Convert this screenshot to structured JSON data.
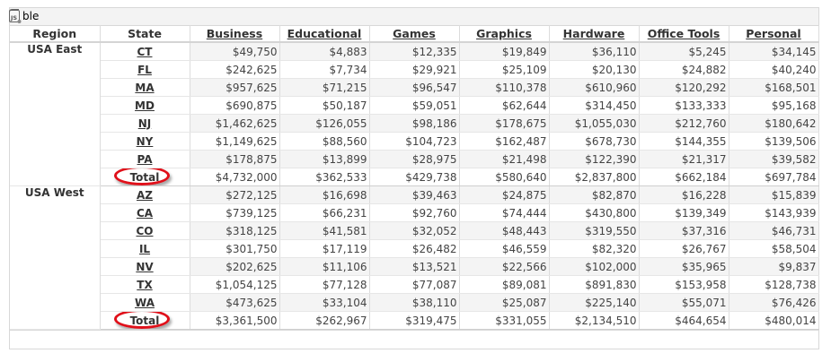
{
  "panel": {
    "title": "ble",
    "icon": "js-script-icon"
  },
  "table": {
    "headers": [
      "Region",
      "State",
      "Business",
      "Educational",
      "Games",
      "Graphics",
      "Hardware",
      "Office Tools",
      "Personal"
    ],
    "groups": [
      {
        "region": "USA East",
        "rows": [
          {
            "state": "CT",
            "values": [
              "$49,750",
              "$4,883",
              "$12,335",
              "$19,849",
              "$36,110",
              "$5,245",
              "$34,145"
            ]
          },
          {
            "state": "FL",
            "values": [
              "$242,625",
              "$7,734",
              "$29,921",
              "$25,109",
              "$20,130",
              "$24,882",
              "$40,240"
            ]
          },
          {
            "state": "MA",
            "values": [
              "$957,625",
              "$71,215",
              "$96,547",
              "$110,378",
              "$610,960",
              "$120,292",
              "$168,501"
            ]
          },
          {
            "state": "MD",
            "values": [
              "$690,875",
              "$50,187",
              "$59,051",
              "$62,644",
              "$314,450",
              "$133,333",
              "$95,168"
            ]
          },
          {
            "state": "NJ",
            "values": [
              "$1,462,625",
              "$126,055",
              "$98,186",
              "$178,675",
              "$1,055,030",
              "$212,760",
              "$180,642"
            ]
          },
          {
            "state": "NY",
            "values": [
              "$1,149,625",
              "$88,560",
              "$104,723",
              "$162,487",
              "$678,730",
              "$144,355",
              "$139,506"
            ]
          },
          {
            "state": "PA",
            "values": [
              "$178,875",
              "$13,899",
              "$28,975",
              "$21,498",
              "$122,390",
              "$21,317",
              "$39,582"
            ]
          }
        ],
        "total": {
          "label": "Total",
          "values": [
            "$4,732,000",
            "$362,533",
            "$429,738",
            "$580,640",
            "$2,837,800",
            "$662,184",
            "$697,784"
          ]
        }
      },
      {
        "region": "USA West",
        "rows": [
          {
            "state": "AZ",
            "values": [
              "$272,125",
              "$16,698",
              "$39,463",
              "$24,875",
              "$82,870",
              "$16,228",
              "$15,839"
            ]
          },
          {
            "state": "CA",
            "values": [
              "$739,125",
              "$66,231",
              "$92,760",
              "$74,444",
              "$430,800",
              "$139,349",
              "$143,939"
            ]
          },
          {
            "state": "CO",
            "values": [
              "$318,125",
              "$41,581",
              "$32,052",
              "$48,443",
              "$319,550",
              "$37,316",
              "$46,731"
            ]
          },
          {
            "state": "IL",
            "values": [
              "$301,750",
              "$17,119",
              "$26,482",
              "$46,559",
              "$82,320",
              "$26,767",
              "$58,504"
            ]
          },
          {
            "state": "NV",
            "values": [
              "$202,625",
              "$11,106",
              "$13,521",
              "$22,566",
              "$102,000",
              "$35,965",
              "$9,837"
            ]
          },
          {
            "state": "TX",
            "values": [
              "$1,054,125",
              "$77,128",
              "$77,087",
              "$89,081",
              "$891,830",
              "$153,958",
              "$128,738"
            ]
          },
          {
            "state": "WA",
            "values": [
              "$473,625",
              "$33,104",
              "$38,110",
              "$25,087",
              "$225,140",
              "$55,071",
              "$76,426"
            ]
          }
        ],
        "total": {
          "label": "Total",
          "values": [
            "$3,361,500",
            "$262,967",
            "$319,475",
            "$331,055",
            "$2,134,510",
            "$464,654",
            "$480,014"
          ]
        }
      }
    ]
  },
  "annotation": {
    "highlight_color": "#e0101a",
    "highlighted": "Total"
  }
}
